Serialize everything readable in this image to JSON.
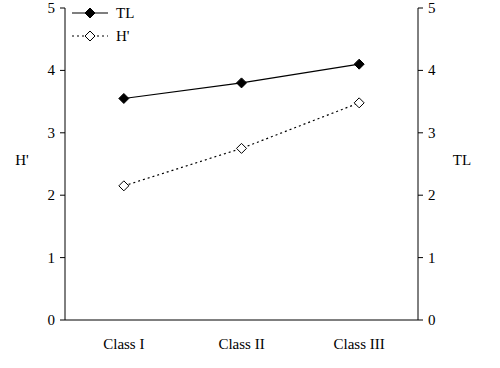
{
  "chart_data": {
    "type": "line",
    "categories": [
      "Class I",
      "Class II",
      "Class III"
    ],
    "series": [
      {
        "name": "TL",
        "color": "#000000",
        "values": [
          3.55,
          3.8,
          4.1
        ],
        "axis": "y2",
        "marker": "diamond",
        "line_style": "solid"
      },
      {
        "name": "H'",
        "color": "#000000",
        "values": [
          2.15,
          2.75,
          3.48
        ],
        "marker": "diamond-open",
        "line_style": "dotted"
      }
    ],
    "ylabel": "H'",
    "y2label": "TL",
    "ylim": [
      0,
      5
    ],
    "yticks": [
      0,
      1,
      2,
      3,
      4,
      5
    ],
    "y2lim": [
      0,
      5
    ],
    "y2ticks": [
      0,
      1,
      2,
      3,
      4,
      5
    ],
    "legend": "upper left"
  }
}
